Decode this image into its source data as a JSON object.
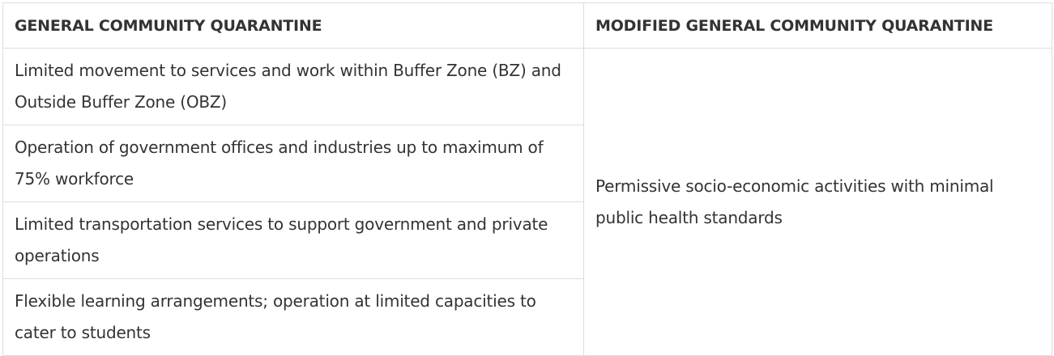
{
  "table": {
    "headers": [
      "GENERAL COMMUNITY QUARANTINE",
      "MODIFIED GENERAL COMMUNITY QUARANTINE"
    ],
    "gcq_rows": [
      "Limited movement to services and work within Buffer Zone (BZ) and Outside Buffer Zone (OBZ)",
      "Operation of government offices and industries up to maximum of 75% workforce",
      "Limited transportation services to support government and private operations",
      "Flexible learning arrangements; operation at limited capacities to cater to students"
    ],
    "mgcq_text": "Permissive socio-economic activities with minimal public health standards"
  },
  "colors": {
    "text": "#333333",
    "border": "#dddddd",
    "background": "#ffffff"
  }
}
